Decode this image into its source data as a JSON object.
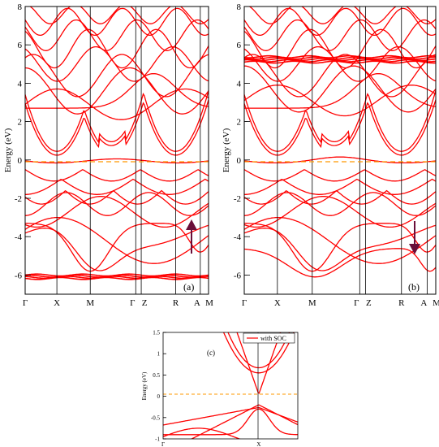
{
  "chart_data": [
    {
      "panel": "(a)",
      "type": "line",
      "xlabel": "",
      "ylabel": "Energy (eV)",
      "ylim": [
        -7,
        8
      ],
      "yticks": [
        "8",
        "6",
        "4",
        "2",
        "0",
        "-2",
        "-4",
        "-6"
      ],
      "kpoints": [
        "Γ",
        "X",
        "M",
        "Γ",
        "Z",
        "R",
        "A",
        "M"
      ],
      "kpoint_positions": [
        0,
        0.173,
        0.355,
        0.603,
        0.633,
        0.821,
        0.955,
        1.0
      ],
      "fermi_level": 0,
      "arrow": "up",
      "arrow_color": "#6a0f3a",
      "band_color": "#ff0000",
      "fermi_color": "#ff9900",
      "grid": false
    },
    {
      "panel": "(b)",
      "type": "line",
      "xlabel": "",
      "ylabel": "Energy (eV)",
      "ylim": [
        -7,
        8
      ],
      "yticks": [
        "8",
        "6",
        "4",
        "2",
        "0",
        "-2",
        "-4",
        "-6"
      ],
      "kpoints": [
        "Γ",
        "X",
        "M",
        "Γ",
        "Z",
        "R",
        "A",
        "M"
      ],
      "kpoint_positions": [
        0,
        0.173,
        0.355,
        0.603,
        0.633,
        0.821,
        0.955,
        1.0
      ],
      "fermi_level": 0,
      "arrow": "down",
      "arrow_color": "#6a0f3a",
      "band_color": "#ff0000",
      "fermi_color": "#ff9900",
      "grid": false
    },
    {
      "panel": "(c)",
      "type": "line",
      "xlabel": "",
      "ylabel": "Energy (eV)",
      "ylim": [
        -1,
        1.5
      ],
      "yticks": [
        "1.5",
        "1",
        "0.5",
        "0",
        "-0.5",
        "-1"
      ],
      "kpoints": [
        "Γ",
        "X"
      ],
      "kpoint_positions": [
        0,
        0.71
      ],
      "fermi_level": 0,
      "legend": "with SOC",
      "legend_position": "top-right",
      "band_color": "#ff0000",
      "fermi_color": "#ff9900",
      "grid": false
    }
  ]
}
